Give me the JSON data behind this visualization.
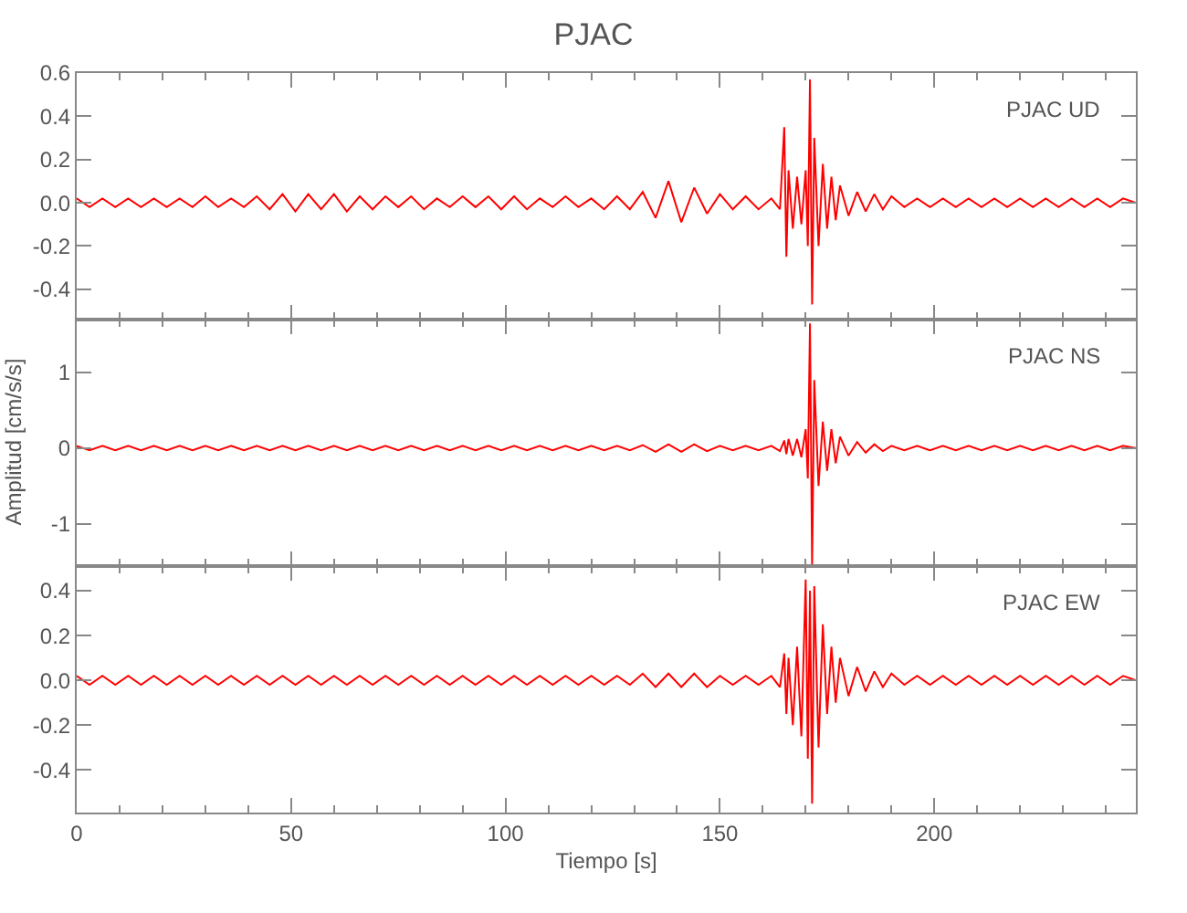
{
  "chart_data": [
    {
      "type": "line",
      "title": "PJAC",
      "annotations": [
        "PJAC UD"
      ],
      "color": "#ff0000",
      "tick_labels": "y",
      "xlim": [
        0,
        247
      ],
      "xticks": [
        0,
        50,
        100,
        150,
        200
      ],
      "ylim": [
        -0.54,
        0.6
      ],
      "yticks": [
        {
          "value": -0.4,
          "label": "-0.4"
        },
        {
          "value": -0.2,
          "label": "-0.2"
        },
        {
          "value": 0,
          "label": "0.0"
        },
        {
          "value": 0.2,
          "label": "0.2"
        },
        {
          "value": 0.4,
          "label": "0.4"
        },
        {
          "value": 0.6,
          "label": "0.6"
        }
      ],
      "x": [
        0,
        3,
        6,
        9,
        12,
        15,
        18,
        21,
        24,
        27,
        30,
        33,
        36,
        39,
        42,
        45,
        48,
        51,
        54,
        57,
        60,
        63,
        66,
        69,
        72,
        75,
        78,
        81,
        84,
        87,
        90,
        93,
        96,
        99,
        102,
        105,
        108,
        111,
        114,
        117,
        120,
        123,
        126,
        129,
        132,
        135,
        138,
        141,
        144,
        147,
        150,
        153,
        156,
        159,
        162,
        164,
        165,
        165.5,
        166,
        167,
        168,
        169,
        170,
        170.5,
        171,
        171.5,
        172,
        173,
        174,
        175,
        176,
        177,
        178,
        180,
        182,
        184,
        186,
        188,
        190,
        193,
        196,
        199,
        202,
        205,
        208,
        211,
        214,
        217,
        220,
        223,
        226,
        229,
        232,
        235,
        238,
        241,
        244,
        247
      ],
      "values": [
        0.02,
        -0.02,
        0.02,
        -0.02,
        0.02,
        -0.02,
        0.02,
        -0.02,
        0.02,
        -0.02,
        0.03,
        -0.02,
        0.02,
        -0.02,
        0.03,
        -0.03,
        0.04,
        -0.04,
        0.04,
        -0.03,
        0.04,
        -0.04,
        0.03,
        -0.03,
        0.03,
        -0.02,
        0.03,
        -0.03,
        0.02,
        -0.02,
        0.03,
        -0.02,
        0.03,
        -0.03,
        0.03,
        -0.03,
        0.02,
        -0.02,
        0.03,
        -0.02,
        0.02,
        -0.03,
        0.03,
        -0.03,
        0.05,
        -0.07,
        0.1,
        -0.09,
        0.07,
        -0.05,
        0.04,
        -0.03,
        0.03,
        -0.03,
        0.02,
        -0.03,
        0.35,
        -0.25,
        0.15,
        -0.12,
        0.12,
        -0.1,
        0.15,
        -0.2,
        0.57,
        -0.47,
        0.3,
        -0.2,
        0.18,
        -0.12,
        0.12,
        -0.08,
        0.08,
        -0.06,
        0.05,
        -0.04,
        0.04,
        -0.03,
        0.03,
        -0.02,
        0.02,
        -0.02,
        0.02,
        -0.02,
        0.02,
        -0.02,
        0.02,
        -0.02,
        0.02,
        -0.02,
        0.02,
        -0.02,
        0.02,
        -0.02,
        0.02,
        -0.02,
        0.02,
        0
      ]
    },
    {
      "type": "line",
      "ylabel": "Amplitud [cm/s/s]",
      "annotations": [
        "PJAC NS"
      ],
      "color": "#ff0000",
      "tick_labels": "y",
      "xlim": [
        0,
        247
      ],
      "xticks": [
        0,
        50,
        100,
        150,
        200
      ],
      "ylim": [
        -1.56,
        1.7
      ],
      "yticks": [
        -1,
        0,
        1
      ],
      "x": [
        0,
        3,
        6,
        9,
        12,
        15,
        18,
        21,
        24,
        27,
        30,
        33,
        36,
        39,
        42,
        45,
        48,
        51,
        54,
        57,
        60,
        63,
        66,
        69,
        72,
        75,
        78,
        81,
        84,
        87,
        90,
        93,
        96,
        99,
        102,
        105,
        108,
        111,
        114,
        117,
        120,
        123,
        126,
        129,
        132,
        135,
        138,
        141,
        144,
        147,
        150,
        153,
        156,
        159,
        162,
        164,
        165,
        165.5,
        166,
        167,
        168,
        169,
        170,
        170.5,
        171,
        171.5,
        172,
        173,
        174,
        175,
        176,
        177,
        178,
        180,
        182,
        184,
        186,
        188,
        190,
        193,
        196,
        199,
        202,
        205,
        208,
        211,
        214,
        217,
        220,
        223,
        226,
        229,
        232,
        235,
        238,
        241,
        244,
        247
      ],
      "values": [
        0.03,
        -0.03,
        0.03,
        -0.03,
        0.03,
        -0.03,
        0.03,
        -0.03,
        0.03,
        -0.03,
        0.03,
        -0.03,
        0.03,
        -0.03,
        0.03,
        -0.03,
        0.03,
        -0.03,
        0.03,
        -0.03,
        0.03,
        -0.03,
        0.03,
        -0.03,
        0.03,
        -0.03,
        0.03,
        -0.03,
        0.03,
        -0.03,
        0.03,
        -0.03,
        0.03,
        -0.03,
        0.03,
        -0.03,
        0.03,
        -0.03,
        0.03,
        -0.03,
        0.03,
        -0.03,
        0.03,
        -0.03,
        0.04,
        -0.05,
        0.05,
        -0.05,
        0.05,
        -0.04,
        0.03,
        -0.03,
        0.03,
        -0.03,
        0.03,
        -0.04,
        0.1,
        -0.08,
        0.12,
        -0.1,
        0.12,
        -0.12,
        0.25,
        -0.4,
        1.65,
        -1.55,
        0.9,
        -0.5,
        0.35,
        -0.3,
        0.25,
        -0.2,
        0.15,
        -0.1,
        0.08,
        -0.06,
        0.05,
        -0.04,
        0.03,
        -0.03,
        0.03,
        -0.03,
        0.03,
        -0.03,
        0.03,
        -0.03,
        0.03,
        -0.03,
        0.03,
        -0.03,
        0.03,
        -0.03,
        0.03,
        -0.03,
        0.03,
        -0.03,
        0.03,
        0
      ]
    },
    {
      "type": "line",
      "xlabel": "Tiempo [s]",
      "annotations": [
        "PJAC EW"
      ],
      "color": "#ff0000",
      "xlim": [
        0,
        247
      ],
      "xticks": [
        0,
        50,
        100,
        150,
        200
      ],
      "ylim": [
        -0.59,
        0.51
      ],
      "yticks": [
        {
          "value": -0.4,
          "label": "-0.4"
        },
        {
          "value": -0.2,
          "label": "-0.2"
        },
        {
          "value": 0,
          "label": "0.0"
        },
        {
          "value": 0.2,
          "label": "0.2"
        },
        {
          "value": 0.4,
          "label": "0.4"
        }
      ],
      "x": [
        0,
        3,
        6,
        9,
        12,
        15,
        18,
        21,
        24,
        27,
        30,
        33,
        36,
        39,
        42,
        45,
        48,
        51,
        54,
        57,
        60,
        63,
        66,
        69,
        72,
        75,
        78,
        81,
        84,
        87,
        90,
        93,
        96,
        99,
        102,
        105,
        108,
        111,
        114,
        117,
        120,
        123,
        126,
        129,
        132,
        135,
        138,
        141,
        144,
        147,
        150,
        153,
        156,
        159,
        162,
        164,
        165,
        165.5,
        166,
        167,
        168,
        169,
        170,
        170.5,
        171,
        171.5,
        172,
        173,
        174,
        175,
        176,
        177,
        178,
        180,
        182,
        184,
        186,
        188,
        190,
        193,
        196,
        199,
        202,
        205,
        208,
        211,
        214,
        217,
        220,
        223,
        226,
        229,
        232,
        235,
        238,
        241,
        244,
        247
      ],
      "values": [
        0.02,
        -0.02,
        0.02,
        -0.02,
        0.02,
        -0.02,
        0.02,
        -0.02,
        0.02,
        -0.02,
        0.02,
        -0.02,
        0.02,
        -0.02,
        0.02,
        -0.02,
        0.02,
        -0.02,
        0.02,
        -0.02,
        0.02,
        -0.02,
        0.02,
        -0.02,
        0.02,
        -0.02,
        0.02,
        -0.02,
        0.02,
        -0.02,
        0.02,
        -0.02,
        0.02,
        -0.02,
        0.02,
        -0.02,
        0.02,
        -0.02,
        0.02,
        -0.02,
        0.02,
        -0.02,
        0.02,
        -0.02,
        0.03,
        -0.03,
        0.03,
        -0.03,
        0.03,
        -0.03,
        0.02,
        -0.02,
        0.02,
        -0.02,
        0.02,
        -0.03,
        0.12,
        -0.15,
        0.1,
        -0.2,
        0.15,
        -0.25,
        0.45,
        -0.35,
        0.4,
        -0.55,
        0.42,
        -0.3,
        0.25,
        -0.15,
        0.15,
        -0.1,
        0.1,
        -0.07,
        0.06,
        -0.05,
        0.04,
        -0.03,
        0.03,
        -0.02,
        0.02,
        -0.02,
        0.02,
        -0.02,
        0.02,
        -0.02,
        0.02,
        -0.02,
        0.02,
        -0.02,
        0.02,
        -0.02,
        0.02,
        -0.02,
        0.02,
        -0.02,
        0.02,
        0
      ]
    }
  ]
}
